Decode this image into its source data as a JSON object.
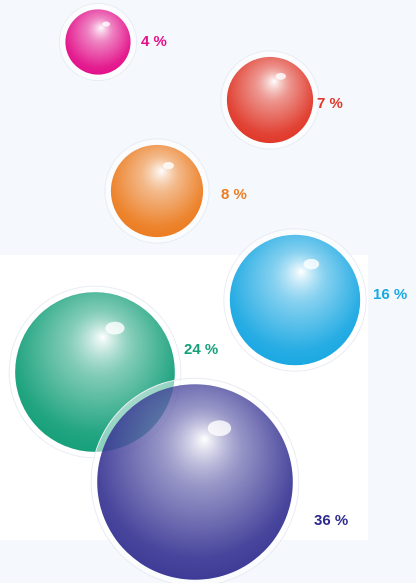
{
  "chart_data": {
    "type": "bubble",
    "values": [
      4,
      7,
      8,
      16,
      24,
      36
    ],
    "value_labels": [
      "4 %",
      "7 %",
      "8 %",
      "16 %",
      "24 %",
      "36 %"
    ],
    "colors": [
      "#e3128a",
      "#e0392a",
      "#ec7d22",
      "#1ba8e2",
      "#16a07a",
      "#2e2b8e"
    ]
  }
}
